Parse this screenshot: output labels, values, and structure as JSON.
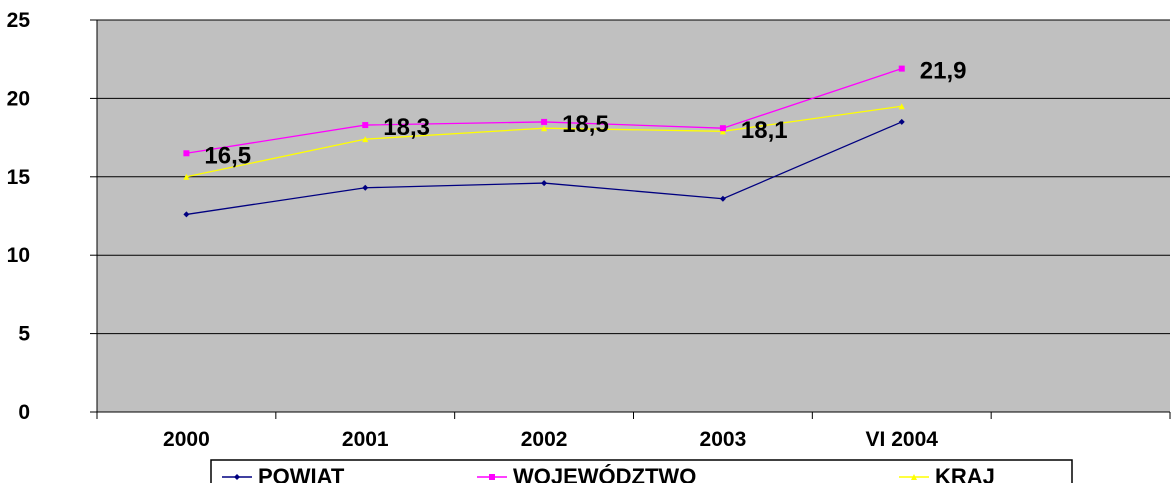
{
  "chart_data": {
    "type": "line",
    "title": "",
    "xlabel": "",
    "ylabel": "",
    "categories": [
      "2000",
      "2001",
      "2002",
      "2003",
      "VI 2004"
    ],
    "ylim": [
      0,
      25
    ],
    "yticks": [
      "0",
      "5",
      "10",
      "15",
      "20",
      "25"
    ],
    "grid": true,
    "legend_position": "bottom",
    "plot_background": "#c0c0c0",
    "series": [
      {
        "name": "POWIAT",
        "color": "#000080",
        "marker": "diamond",
        "values": [
          12.6,
          14.3,
          14.6,
          13.6,
          18.5
        ]
      },
      {
        "name": "WOJEWÓDZTWO",
        "color": "#ff00ff",
        "marker": "square",
        "values": [
          16.5,
          18.3,
          18.5,
          18.1,
          21.9
        ],
        "data_labels": [
          "16,5",
          "18,3",
          "18,5",
          "18,1",
          "21,9"
        ]
      },
      {
        "name": "KRAJ",
        "color": "#ffff00",
        "marker": "triangle",
        "values": [
          15.0,
          17.4,
          18.1,
          17.9,
          19.5
        ]
      }
    ]
  }
}
